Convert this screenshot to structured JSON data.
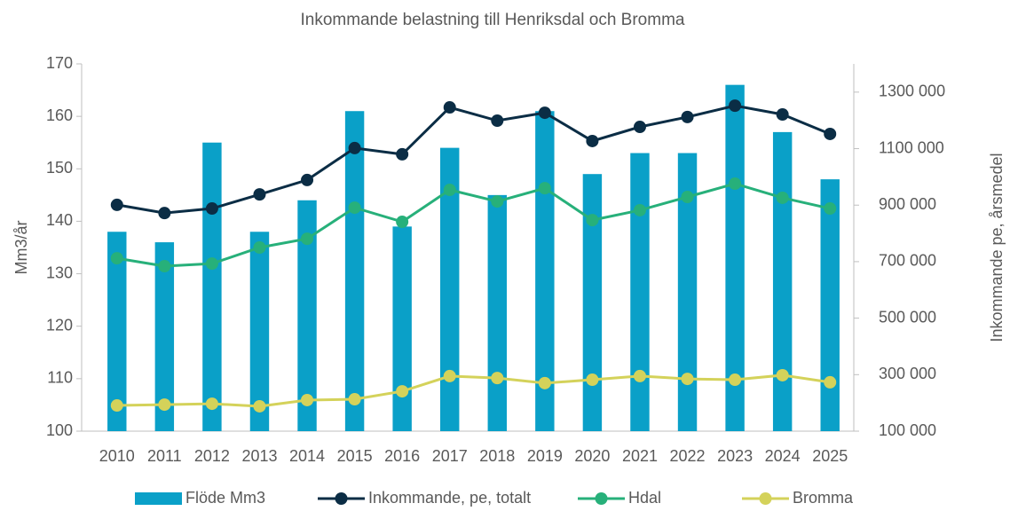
{
  "chart_data": {
    "type": "combo",
    "title": "Inkommande belastning till Henriksdal och Bromma",
    "ylabel": "Mm3/år",
    "y2label": "Inkommande pe, årsmedel",
    "categories": [
      "2010",
      "2011",
      "2012",
      "2013",
      "2014",
      "2015",
      "2016",
      "2017",
      "2018",
      "2019",
      "2020",
      "2021",
      "2022",
      "2023",
      "2024",
      "2025"
    ],
    "ylim": [
      100,
      170
    ],
    "yticks": [
      100,
      110,
      120,
      130,
      140,
      150,
      160,
      170
    ],
    "y2lim": [
      100000,
      1400000
    ],
    "y2ticks": [
      {
        "value": 100000,
        "label": "100 000"
      },
      {
        "value": 300000,
        "label": "300 000"
      },
      {
        "value": 500000,
        "label": "500 000"
      },
      {
        "value": 700000,
        "label": "700 000"
      },
      {
        "value": 900000,
        "label": "900 000"
      },
      {
        "value": 1100000,
        "label": "1100 000"
      },
      {
        "value": 1300000,
        "label": "1300 000"
      }
    ],
    "legend": "bottom",
    "series": [
      {
        "name": "Flöde Mm3",
        "type": "bar",
        "color": "#0aa0c8",
        "values": [
          138,
          136,
          155,
          138,
          144,
          161,
          139,
          154,
          145,
          161,
          149,
          153,
          153,
          166,
          157,
          148
        ]
      },
      {
        "name": "Inkommande, pe, totalt",
        "type": "line",
        "axis": "y2",
        "color": "#0b2d45",
        "values": [
          901000,
          872000,
          888000,
          938000,
          989000,
          1102000,
          1080000,
          1246000,
          1199000,
          1227000,
          1127000,
          1177000,
          1212000,
          1252000,
          1221000,
          1152000
        ]
      },
      {
        "name": "Hdal",
        "type": "line",
        "axis": "y2",
        "color": "#27b07a",
        "values": [
          712000,
          684000,
          693000,
          750000,
          781000,
          891000,
          841000,
          954000,
          913000,
          960000,
          847000,
          882000,
          929000,
          976000,
          926000,
          888000
        ]
      },
      {
        "name": "Bromma",
        "type": "line",
        "axis": "y2",
        "color": "#d4d25a",
        "values": [
          191000,
          194000,
          197000,
          188000,
          210000,
          213000,
          241000,
          295000,
          288000,
          270000,
          282000,
          295000,
          285000,
          282000,
          298000,
          273000
        ]
      }
    ]
  }
}
